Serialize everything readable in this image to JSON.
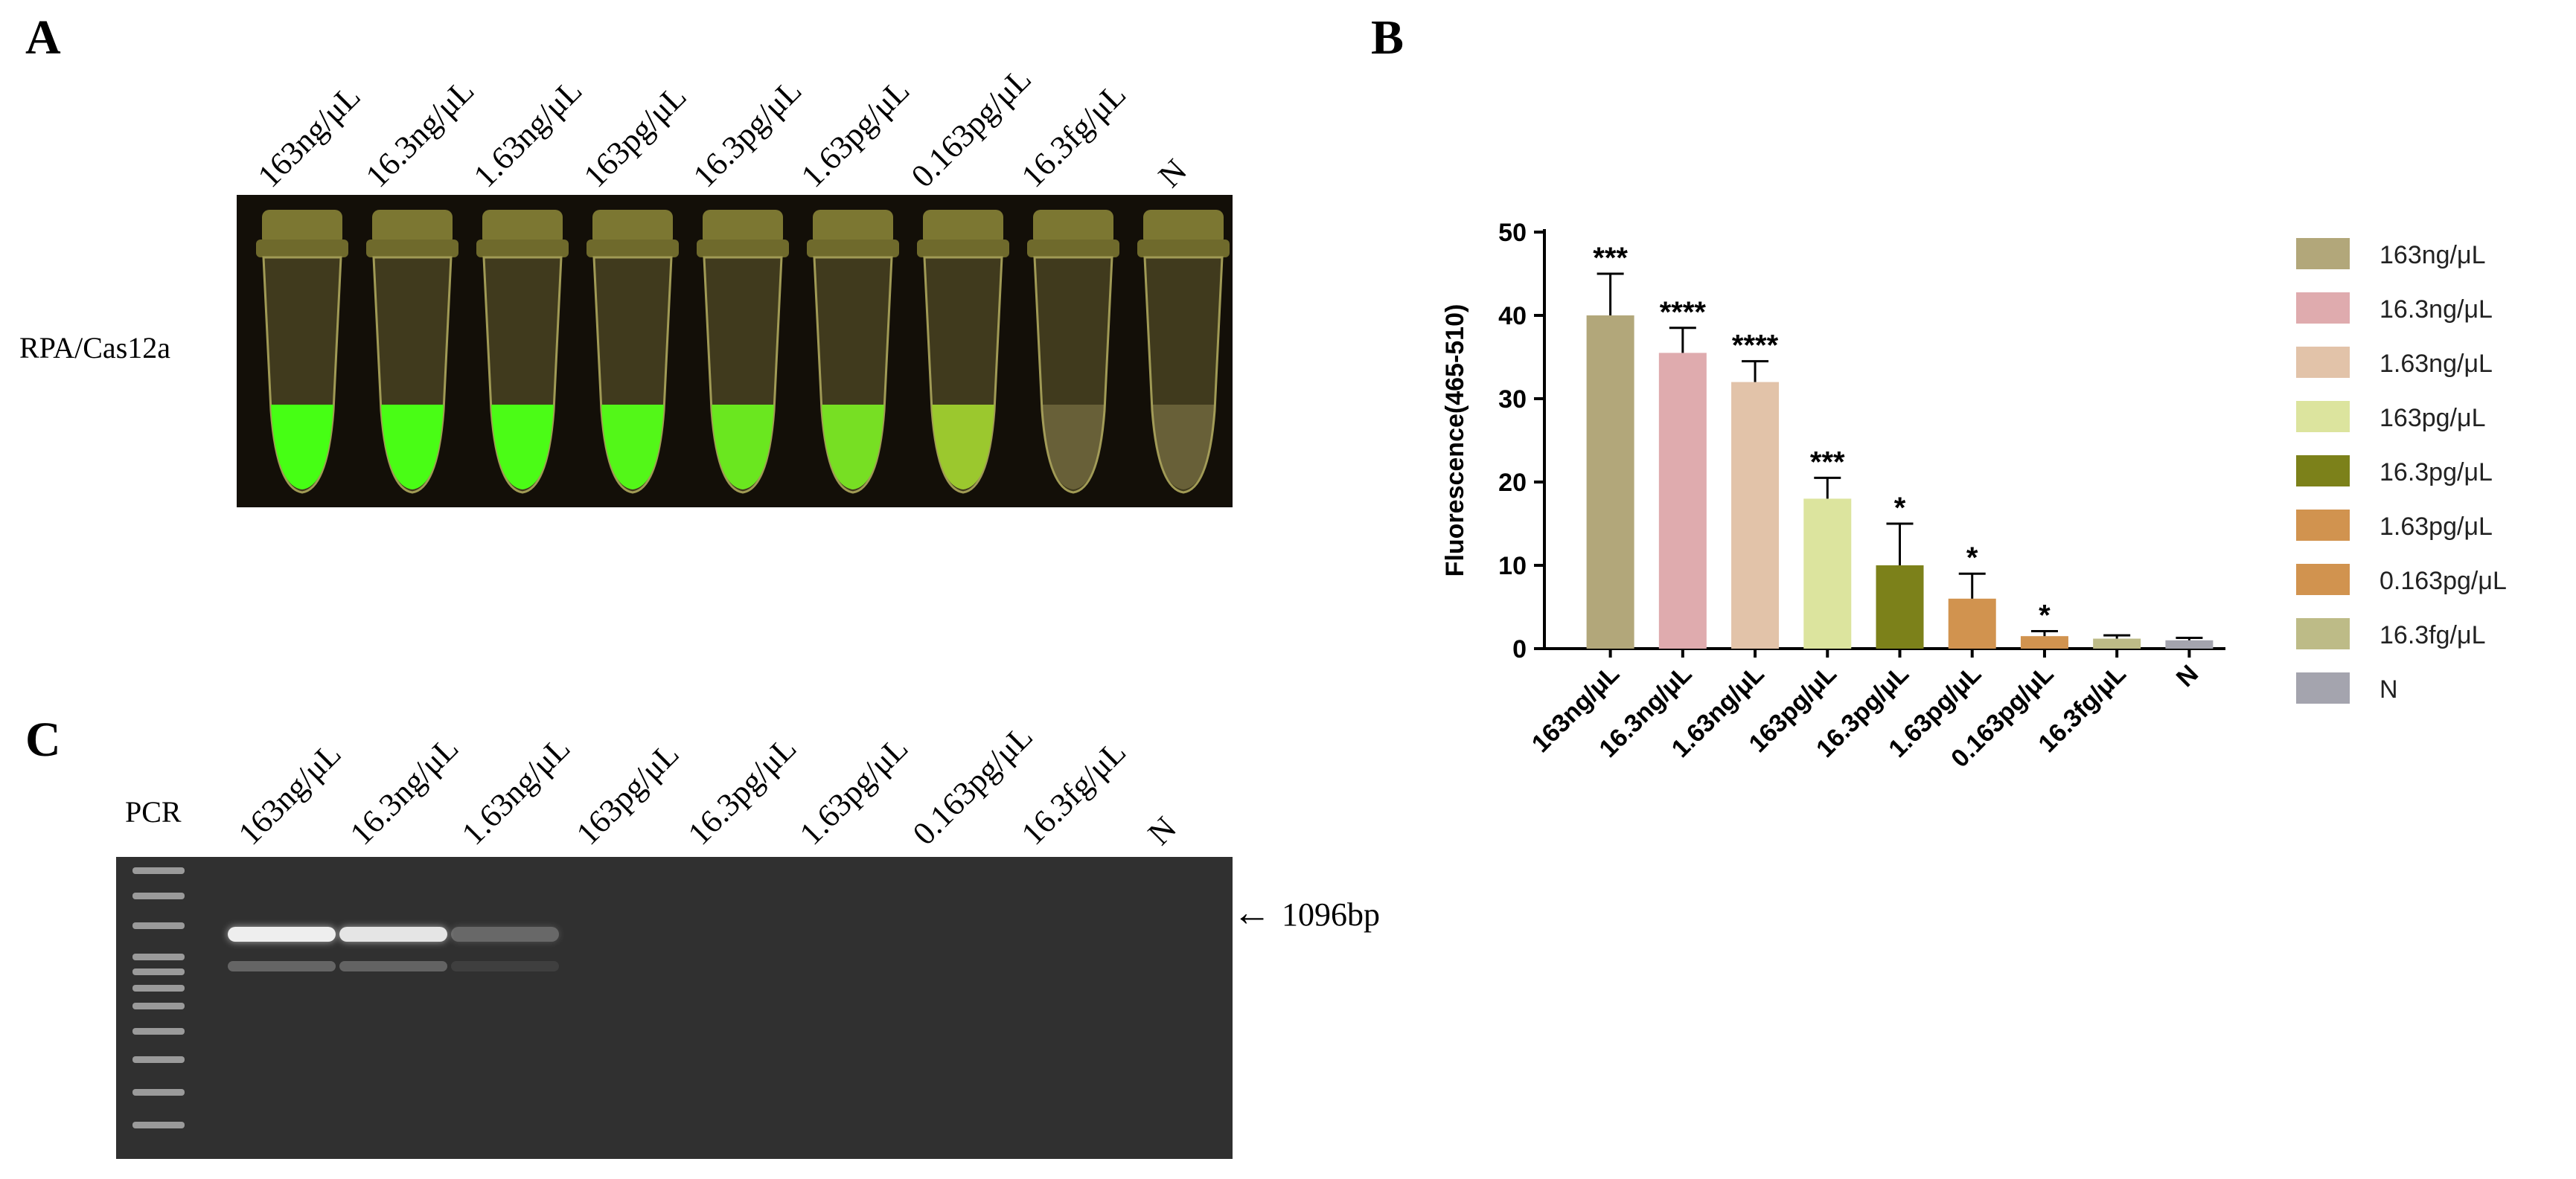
{
  "panels": {
    "a": "A",
    "b": "B",
    "c": "C"
  },
  "panel_a": {
    "row_label": "RPA/Cas12a",
    "lane_labels": [
      "163ng/μL",
      "16.3ng/μL",
      "1.63ng/μL",
      "163pg/μL",
      "16.3pg/μL",
      "1.63pg/μL",
      "0.163pg/μL",
      "16.3fg/μL",
      "N"
    ],
    "fluorescence_levels": [
      1.0,
      0.98,
      0.96,
      0.9,
      0.72,
      0.62,
      0.35,
      0.08,
      0.04
    ]
  },
  "panel_c": {
    "row_label": "PCR",
    "lane_labels": [
      "163ng/μL",
      "16.3ng/μL",
      "1.63ng/μL",
      "163pg/μL",
      "16.3pg/μL",
      "1.63pg/μL",
      "0.163pg/μL",
      "16.3fg/μL",
      "N"
    ],
    "band_label": "1096bp",
    "band_intensities": [
      1.0,
      0.95,
      0.3,
      0,
      0,
      0,
      0,
      0,
      0
    ]
  },
  "chart_data": {
    "type": "bar",
    "title": "",
    "xlabel": "",
    "ylabel": "Fluorescence(465-510)",
    "ylim": [
      0,
      50
    ],
    "yticks": [
      "0",
      "10",
      "20",
      "30",
      "40",
      "50"
    ],
    "categories": [
      "163ng/μL",
      "16.3ng/μL",
      "1.63ng/μL",
      "163pg/μL",
      "16.3pg/μL",
      "1.63pg/μL",
      "0.163pg/μL",
      "16.3fg/μL",
      "N"
    ],
    "values": [
      40,
      35.5,
      32,
      18,
      10,
      6,
      1.5,
      1.2,
      1.0
    ],
    "errors": [
      5,
      3,
      2.5,
      2.5,
      5,
      3,
      0.6,
      0.4,
      0.3
    ],
    "significance": [
      "***",
      "****",
      "****",
      "***",
      "*",
      "*",
      "*",
      "",
      ""
    ],
    "colors": [
      "#b2a77a",
      "#dfabae",
      "#e2c3a9",
      "#dce49e",
      "#7c811a",
      "#d1934f",
      "#d1934f",
      "#bdbb87",
      "#a4a4ae"
    ],
    "legend_position": "right",
    "grid": false
  }
}
